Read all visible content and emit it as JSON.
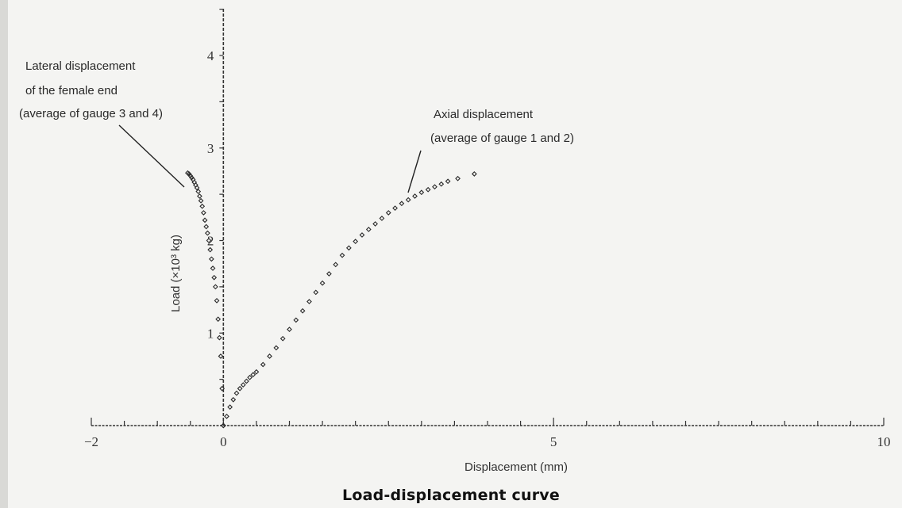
{
  "caption": "Load-displacement curve",
  "chart_data": {
    "type": "scatter",
    "title": "",
    "xlabel": "Displacement (mm)",
    "ylabel": "Load (×10³ kg)",
    "xlim": [
      -2,
      10
    ],
    "ylim": [
      0,
      4.5
    ],
    "x_ticks": [
      -2,
      0,
      5,
      10
    ],
    "x_tick_labels": [
      "−2",
      "0",
      "5",
      "10"
    ],
    "y_ticks": [
      1,
      2,
      3,
      4
    ],
    "y_tick_labels": [
      "1",
      "2",
      "3",
      "4"
    ],
    "grid": false,
    "legend": "none",
    "series": [
      {
        "marker": "diamond",
        "x": [
          0,
          -0.02,
          -0.04,
          -0.06,
          -0.08,
          -0.1,
          -0.12,
          -0.14,
          -0.16,
          -0.18,
          -0.2,
          -0.22,
          -0.24,
          -0.26,
          -0.28,
          -0.3,
          -0.32,
          -0.34,
          -0.36,
          -0.38,
          -0.4,
          -0.42,
          -0.44,
          -0.46,
          -0.48,
          -0.5,
          -0.52,
          -0.54
        ],
        "y": [
          0,
          0.4,
          0.75,
          0.95,
          1.15,
          1.35,
          1.5,
          1.6,
          1.7,
          1.8,
          1.9,
          2.0,
          2.08,
          2.15,
          2.22,
          2.3,
          2.37,
          2.43,
          2.48,
          2.53,
          2.57,
          2.6,
          2.63,
          2.66,
          2.68,
          2.7,
          2.72,
          2.73
        ]
      },
      {
        "marker": "diamond",
        "x": [
          0,
          0.05,
          0.1,
          0.15,
          0.2,
          0.25,
          0.3,
          0.35,
          0.4,
          0.45,
          0.5,
          0.6,
          0.7,
          0.8,
          0.9,
          1.0,
          1.1,
          1.2,
          1.3,
          1.4,
          1.5,
          1.6,
          1.7,
          1.8,
          1.9,
          2.0,
          2.1,
          2.2,
          2.3,
          2.4,
          2.5,
          2.6,
          2.7,
          2.8,
          2.9,
          3.0,
          3.1,
          3.2,
          3.3,
          3.4,
          3.55,
          3.8
        ],
        "y": [
          0,
          0.1,
          0.2,
          0.28,
          0.35,
          0.4,
          0.44,
          0.48,
          0.52,
          0.55,
          0.58,
          0.66,
          0.75,
          0.84,
          0.94,
          1.04,
          1.14,
          1.24,
          1.34,
          1.44,
          1.54,
          1.64,
          1.74,
          1.84,
          1.92,
          1.99,
          2.06,
          2.12,
          2.18,
          2.24,
          2.3,
          2.35,
          2.4,
          2.44,
          2.48,
          2.52,
          2.55,
          2.58,
          2.61,
          2.64,
          2.67,
          2.72
        ]
      }
    ],
    "annotations": [
      {
        "lines": [
          "Lateral displacement",
          "of the female end",
          "(average of gauge 3 and 4)"
        ]
      },
      {
        "lines": [
          "Axial displacement",
          "(average of gauge 1 and 2)"
        ]
      }
    ]
  }
}
